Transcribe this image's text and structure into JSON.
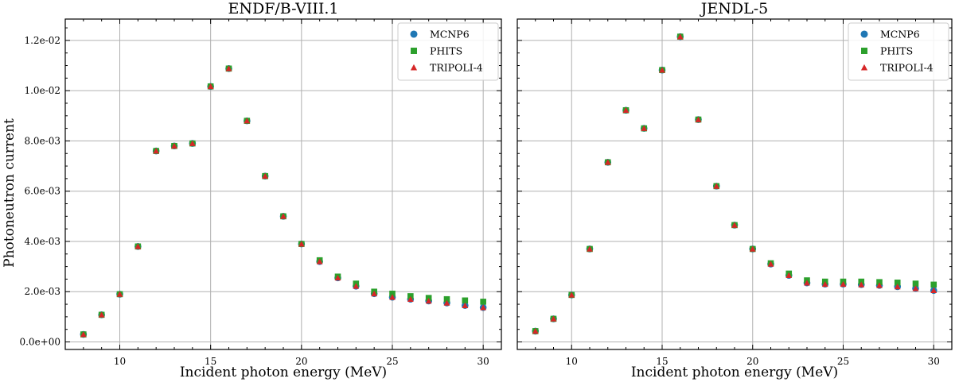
{
  "ylabel": "Photoneutron current",
  "legend": {
    "entries": [
      {
        "name": "MCNP6",
        "color": "#1f77b4",
        "marker": "circle"
      },
      {
        "name": "PHITS",
        "color": "#2ca02c",
        "marker": "square"
      },
      {
        "name": "TRIPOLI-4",
        "color": "#d62728",
        "marker": "triangle"
      }
    ]
  },
  "chart_data": [
    {
      "type": "scatter",
      "title": "ENDF/B-VIII.1",
      "xlabel": "Incident photon energy (MeV)",
      "ylabel": "Photoneutron current",
      "xlim": [
        7.0,
        31.0
      ],
      "ylim": [
        -0.0003,
        0.01285
      ],
      "xticks": [
        10,
        15,
        20,
        25,
        30
      ],
      "yticks": [
        0.0,
        0.002,
        0.004,
        0.006,
        0.008,
        0.01,
        0.012
      ],
      "ytick_labels": [
        "0.0e+00",
        "2.0e-03",
        "4.0e-03",
        "6.0e-03",
        "8.0e-03",
        "1.0e-02",
        "1.2e-02"
      ],
      "grid": true,
      "legend_position": "top-right",
      "x": [
        8,
        9,
        10,
        11,
        12,
        13,
        14,
        15,
        16,
        17,
        18,
        19,
        20,
        21,
        22,
        23,
        24,
        25,
        26,
        27,
        28,
        29,
        30
      ],
      "series": [
        {
          "name": "MCNP6",
          "values": [
            0.0003,
            0.00108,
            0.0019,
            0.0038,
            0.0076,
            0.0078,
            0.0079,
            0.01017,
            0.01088,
            0.0088,
            0.0066,
            0.005,
            0.0039,
            0.0032,
            0.00255,
            0.00222,
            0.00192,
            0.00178,
            0.0017,
            0.00163,
            0.00155,
            0.00145,
            0.00137
          ]
        },
        {
          "name": "PHITS",
          "values": [
            0.0003,
            0.00108,
            0.0019,
            0.0038,
            0.0076,
            0.0078,
            0.0079,
            0.01017,
            0.01088,
            0.0088,
            0.0066,
            0.005,
            0.0039,
            0.00325,
            0.0026,
            0.00232,
            0.002,
            0.00192,
            0.00182,
            0.00175,
            0.0017,
            0.00165,
            0.0016
          ]
        },
        {
          "name": "TRIPOLI-4",
          "values": [
            0.0003,
            0.00108,
            0.0019,
            0.0038,
            0.0076,
            0.0078,
            0.0079,
            0.01017,
            0.01088,
            0.0088,
            0.0066,
            0.005,
            0.0039,
            0.0032,
            0.00255,
            0.00222,
            0.00192,
            0.00178,
            0.0017,
            0.00163,
            0.00155,
            0.00145,
            0.00137
          ]
        }
      ]
    },
    {
      "type": "scatter",
      "title": "JENDL-5",
      "xlabel": "Incident photon energy (MeV)",
      "ylabel": "",
      "xlim": [
        7.0,
        31.0
      ],
      "ylim": [
        -0.0003,
        0.01285
      ],
      "xticks": [
        10,
        15,
        20,
        25,
        30
      ],
      "yticks": [
        0.0,
        0.002,
        0.004,
        0.006,
        0.008,
        0.01,
        0.012
      ],
      "ytick_labels": [],
      "grid": true,
      "legend_position": "top-right",
      "x": [
        8,
        9,
        10,
        11,
        12,
        13,
        14,
        15,
        16,
        17,
        18,
        19,
        20,
        21,
        22,
        23,
        24,
        25,
        26,
        27,
        28,
        29,
        30
      ],
      "series": [
        {
          "name": "MCNP6",
          "values": [
            0.00043,
            0.00092,
            0.00187,
            0.0037,
            0.00715,
            0.00922,
            0.0085,
            0.01082,
            0.01215,
            0.00885,
            0.0062,
            0.00465,
            0.0037,
            0.0031,
            0.00265,
            0.00235,
            0.0023,
            0.0023,
            0.00228,
            0.00225,
            0.0022,
            0.00213,
            0.00205
          ]
        },
        {
          "name": "PHITS",
          "values": [
            0.00043,
            0.00092,
            0.00187,
            0.0037,
            0.00715,
            0.00922,
            0.0085,
            0.01082,
            0.01215,
            0.00885,
            0.0062,
            0.00465,
            0.0037,
            0.00313,
            0.00272,
            0.00245,
            0.0024,
            0.0024,
            0.0024,
            0.00238,
            0.00236,
            0.00232,
            0.00228
          ]
        },
        {
          "name": "TRIPOLI-4",
          "values": [
            0.00043,
            0.00092,
            0.00187,
            0.0037,
            0.00715,
            0.00922,
            0.0085,
            0.01082,
            0.01215,
            0.00885,
            0.0062,
            0.00465,
            0.0037,
            0.0031,
            0.00265,
            0.00235,
            0.0023,
            0.0023,
            0.00228,
            0.00225,
            0.0022,
            0.00213,
            0.00205
          ]
        }
      ]
    }
  ]
}
